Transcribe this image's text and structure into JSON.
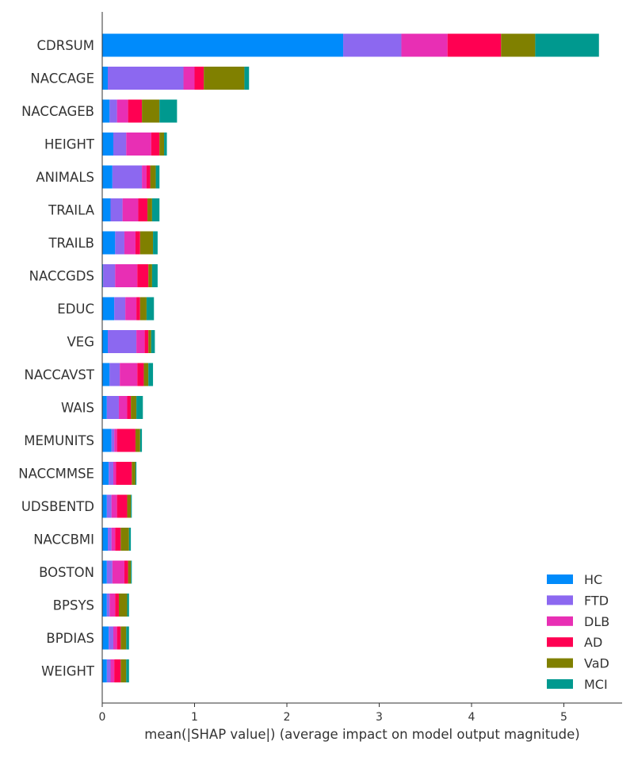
{
  "chart_data": {
    "type": "bar",
    "orientation": "horizontal",
    "stacked": true,
    "xlabel": "mean(|SHAP value|) (average impact on model output magnitude)",
    "xlim": [
      0,
      5.5
    ],
    "xticks": [
      0,
      1,
      2,
      3,
      4,
      5
    ],
    "grid": false,
    "legend_position": "bottom-right",
    "categories": [
      "CDRSUM",
      "NACCAGE",
      "NACCAGEB",
      "HEIGHT",
      "ANIMALS",
      "TRAILA",
      "TRAILB",
      "NACCGDS",
      "EDUC",
      "VEG",
      "NACCAVST",
      "WAIS",
      "MEMUNITS",
      "NACCMMSE",
      "UDSBENTD",
      "NACCBMI",
      "BOSTON",
      "BPSYS",
      "BPDIAS",
      "WEIGHT"
    ],
    "series": [
      {
        "name": "HC",
        "color": "#008bfb",
        "values": [
          2.61,
          0.06,
          0.08,
          0.12,
          0.11,
          0.09,
          0.14,
          0.01,
          0.13,
          0.06,
          0.08,
          0.05,
          0.1,
          0.07,
          0.05,
          0.06,
          0.05,
          0.05,
          0.07,
          0.05
        ]
      },
      {
        "name": "FTD",
        "color": "#8c68f0",
        "values": [
          0.63,
          0.82,
          0.08,
          0.14,
          0.32,
          0.13,
          0.1,
          0.13,
          0.12,
          0.31,
          0.11,
          0.13,
          0.03,
          0.05,
          0.05,
          0.04,
          0.06,
          0.03,
          0.05,
          0.04
        ]
      },
      {
        "name": "DLB",
        "color": "#e82fb4",
        "values": [
          0.5,
          0.12,
          0.12,
          0.27,
          0.05,
          0.17,
          0.12,
          0.24,
          0.12,
          0.09,
          0.19,
          0.09,
          0.03,
          0.03,
          0.06,
          0.04,
          0.13,
          0.06,
          0.04,
          0.04
        ]
      },
      {
        "name": "AD",
        "color": "#ff0052",
        "values": [
          0.58,
          0.1,
          0.15,
          0.09,
          0.04,
          0.1,
          0.05,
          0.12,
          0.04,
          0.04,
          0.07,
          0.04,
          0.2,
          0.17,
          0.11,
          0.06,
          0.04,
          0.04,
          0.04,
          0.07
        ]
      },
      {
        "name": "VaD",
        "color": "#808000",
        "values": [
          0.37,
          0.44,
          0.19,
          0.05,
          0.06,
          0.05,
          0.14,
          0.04,
          0.07,
          0.03,
          0.05,
          0.06,
          0.05,
          0.04,
          0.04,
          0.09,
          0.03,
          0.09,
          0.06,
          0.06
        ]
      },
      {
        "name": "MCI",
        "color": "#00998f",
        "values": [
          0.69,
          0.05,
          0.19,
          0.03,
          0.04,
          0.08,
          0.05,
          0.06,
          0.08,
          0.04,
          0.05,
          0.07,
          0.02,
          0.01,
          0.01,
          0.02,
          0.01,
          0.02,
          0.03,
          0.03
        ]
      }
    ]
  }
}
